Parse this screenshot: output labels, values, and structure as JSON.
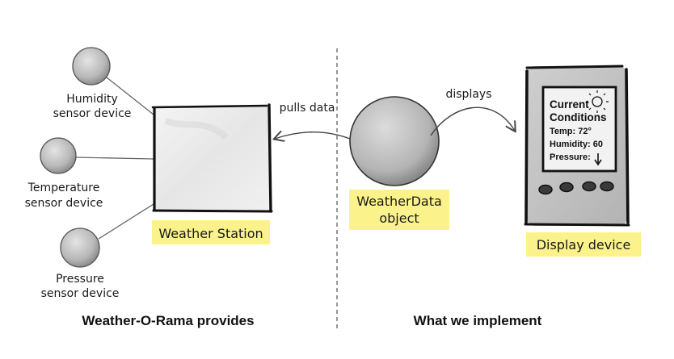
{
  "sensors": [
    {
      "id": "humidity",
      "line1": "Humidity",
      "line2": "sensor device"
    },
    {
      "id": "temperature",
      "line1": "Temperature",
      "line2": "sensor device"
    },
    {
      "id": "pressure",
      "line1": "Pressure",
      "line2": "sensor device"
    }
  ],
  "weather_station": {
    "label": "Weather Station"
  },
  "weather_data": {
    "line1": "WeatherData",
    "line2": "object"
  },
  "display_device": {
    "label": "Display device",
    "screen": {
      "title_line1": "Current",
      "title_line2": "Conditions",
      "temp": "Temp: 72°",
      "humidity": "Humidity: 60",
      "pressure": "Pressure:"
    }
  },
  "arrows": {
    "pulls": "pulls data",
    "displays": "displays"
  },
  "sections": {
    "left": "Weather-O-Rama provides",
    "right": "What we implement"
  },
  "colors": {
    "highlight": "#fbf28c",
    "sphere": "#b9b9b9",
    "ink": "#111111"
  }
}
